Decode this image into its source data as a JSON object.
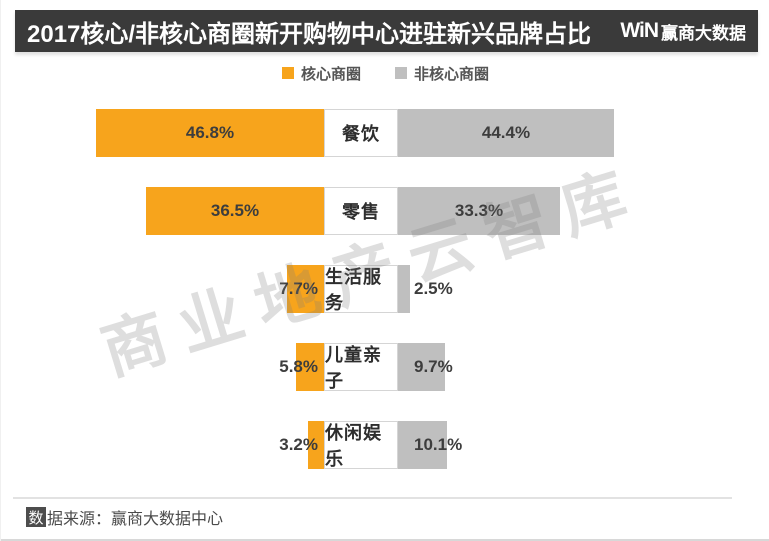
{
  "header": {
    "title": "2017核心/非核心商圈新开购物中心进驻新兴品牌占比",
    "logo_win": "WiN",
    "logo_brand": "赢商大数据"
  },
  "legend": [
    {
      "label": "核心商圈",
      "color": "#F7A41C"
    },
    {
      "label": "非核心商圈",
      "color": "#BFBFBF"
    }
  ],
  "chart_data": {
    "type": "bar",
    "subtype": "diverging-horizontal",
    "title": "2017核心/非核心商圈新开购物中心进驻新兴品牌占比",
    "categories": [
      "餐饮",
      "零售",
      "生活服务",
      "儿童亲子",
      "休闲娱乐"
    ],
    "series": [
      {
        "name": "核心商圈",
        "color": "#F7A41C",
        "values": [
          46.8,
          36.5,
          7.7,
          5.8,
          3.2
        ]
      },
      {
        "name": "非核心商圈",
        "color": "#BFBFBF",
        "values": [
          44.4,
          33.3,
          2.5,
          9.7,
          10.1
        ]
      }
    ],
    "value_suffix": "%",
    "legend_position": "top",
    "axis": "none",
    "grid": false
  },
  "watermark": {
    "text": "商业地产云智库"
  },
  "footer": {
    "prefix_char": "数",
    "rest": "据来源：赢商大数据中心"
  },
  "colors": {
    "header_bg": "#3A3A3A",
    "core": "#F7A41C",
    "noncore": "#BFBFBF",
    "value_text": "#3D3D3D"
  }
}
